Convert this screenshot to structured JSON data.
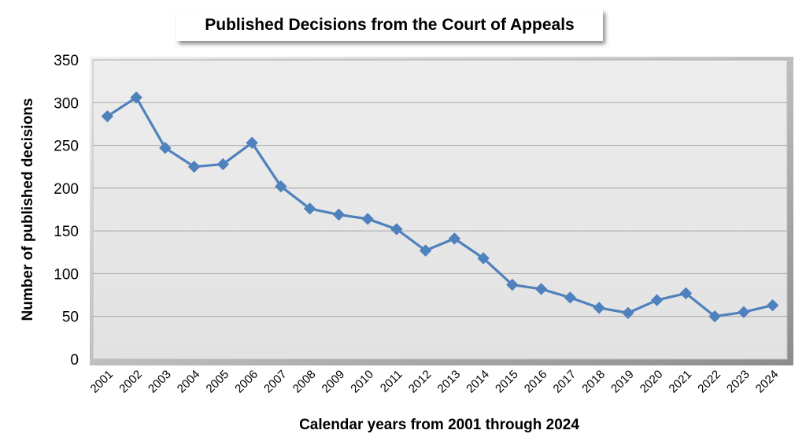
{
  "chart_data": {
    "type": "line",
    "title": "Published Decisions from the Court of Appeals",
    "xlabel": "Calendar years from 2001 through 2024",
    "ylabel": "Number of published decisions",
    "ylim": [
      0,
      350
    ],
    "yticks": [
      "0",
      "50",
      "100",
      "150",
      "200",
      "250",
      "300",
      "350"
    ],
    "grid": true,
    "categories": [
      "2001",
      "2002",
      "2003",
      "2004",
      "2005",
      "2006",
      "2007",
      "2008",
      "2009",
      "2010",
      "2011",
      "2012",
      "2013",
      "2014",
      "2015",
      "2016",
      "2017",
      "2018",
      "2019",
      "2020",
      "2021",
      "2022",
      "2023",
      "2024"
    ],
    "series": [
      {
        "values": [
          284,
          306,
          247,
          225,
          228,
          253,
          202,
          176,
          169,
          164,
          152,
          127,
          141,
          118,
          87,
          82,
          72,
          60,
          54,
          69,
          77,
          50,
          55,
          63
        ],
        "color": "#4F81BD",
        "marker": "diamond"
      }
    ]
  }
}
